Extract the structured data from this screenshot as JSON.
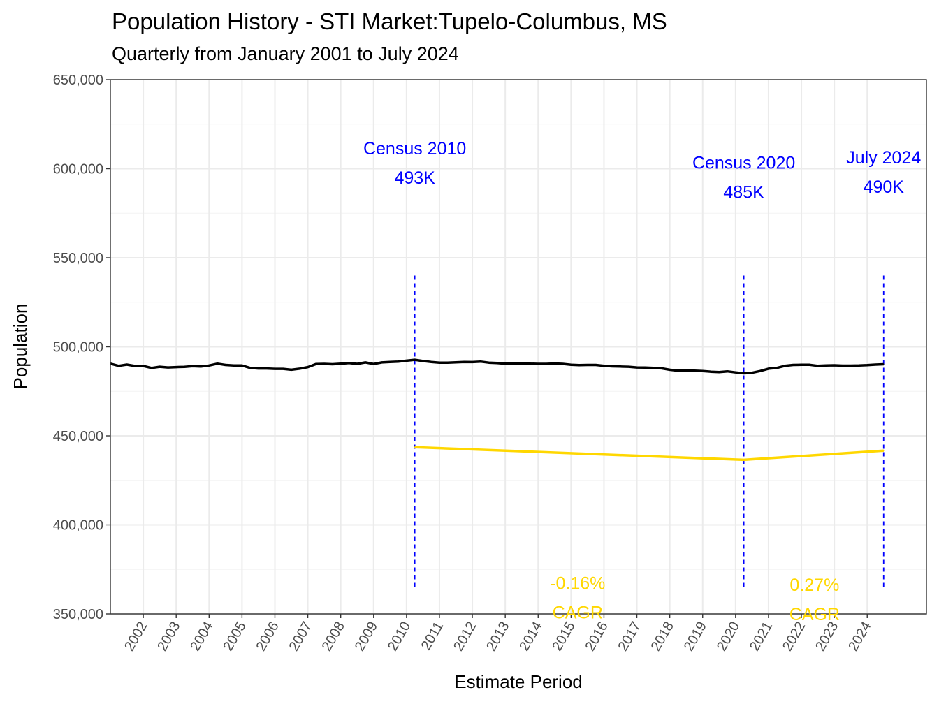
{
  "chart_data": {
    "type": "line",
    "title": "Population History - STI Market:Tupelo-Columbus, MS",
    "subtitle": "Quarterly from January 2001 to July 2024",
    "xlabel": "Estimate Period",
    "ylabel": "Population",
    "ylim": [
      350000,
      650000
    ],
    "xlim": [
      2001.0,
      2025.8
    ],
    "y_ticks": [
      350000,
      400000,
      450000,
      500000,
      550000,
      600000,
      650000
    ],
    "y_tick_labels": [
      "350,000",
      "400,000",
      "450,000",
      "500,000",
      "550,000",
      "600,000",
      "650,000"
    ],
    "x_tick_labels": [
      "2002",
      "2003",
      "2004",
      "2005",
      "2006",
      "2007",
      "2008",
      "2009",
      "2010",
      "2011",
      "2012",
      "2013",
      "2014",
      "2015",
      "2016",
      "2017",
      "2018",
      "2019",
      "2020",
      "2021",
      "2022",
      "2023",
      "2024"
    ],
    "x_tick_label_rotation": -60,
    "grid": true,
    "series": [
      {
        "color": "#000000",
        "x": [
          2001.0,
          2001.25,
          2001.5,
          2001.75,
          2002.0,
          2002.25,
          2002.5,
          2002.75,
          2003.0,
          2003.25,
          2003.5,
          2003.75,
          2004.0,
          2004.25,
          2004.5,
          2004.75,
          2005.0,
          2005.25,
          2005.5,
          2005.75,
          2006.0,
          2006.25,
          2006.5,
          2006.75,
          2007.0,
          2007.25,
          2007.5,
          2007.75,
          2008.0,
          2008.25,
          2008.5,
          2008.75,
          2009.0,
          2009.25,
          2009.5,
          2009.75,
          2010.0,
          2010.25,
          2010.5,
          2010.75,
          2011.0,
          2011.25,
          2011.5,
          2011.75,
          2012.0,
          2012.25,
          2012.5,
          2012.75,
          2013.0,
          2013.25,
          2013.5,
          2013.75,
          2014.0,
          2014.25,
          2014.5,
          2014.75,
          2015.0,
          2015.25,
          2015.5,
          2015.75,
          2016.0,
          2016.25,
          2016.5,
          2016.75,
          2017.0,
          2017.25,
          2017.5,
          2017.75,
          2018.0,
          2018.25,
          2018.5,
          2018.75,
          2019.0,
          2019.25,
          2019.5,
          2019.75,
          2020.0,
          2020.25,
          2020.5,
          2020.75,
          2021.0,
          2021.25,
          2021.5,
          2021.75,
          2022.0,
          2022.25,
          2022.5,
          2022.75,
          2023.0,
          2023.25,
          2023.5,
          2023.75,
          2024.0,
          2024.25,
          2024.5
        ],
        "values": [
          490500,
          489300,
          490000,
          489200,
          489200,
          488100,
          488800,
          488400,
          488600,
          488700,
          489100,
          488900,
          489500,
          490500,
          489800,
          489500,
          489500,
          488100,
          487800,
          487800,
          487600,
          487600,
          487100,
          487700,
          488600,
          490300,
          490400,
          490200,
          490500,
          490900,
          490400,
          491200,
          490300,
          491200,
          491500,
          491700,
          492200,
          492700,
          492000,
          491500,
          491100,
          491100,
          491300,
          491500,
          491400,
          491700,
          491100,
          490900,
          490500,
          490500,
          490500,
          490500,
          490400,
          490400,
          490600,
          490400,
          489900,
          489700,
          489800,
          489800,
          489300,
          489000,
          488900,
          488800,
          488400,
          488300,
          488100,
          487900,
          487100,
          486600,
          486700,
          486600,
          486400,
          486000,
          485800,
          486200,
          485600,
          485100,
          485400,
          486400,
          487700,
          488100,
          489300,
          489800,
          489900,
          489900,
          489300,
          489500,
          489600,
          489400,
          489400,
          489500,
          489700,
          490000,
          490200
        ]
      },
      {
        "color": "#ffd700",
        "x": [
          2010.25,
          2020.25,
          2024.5
        ],
        "values": [
          443600,
          436500,
          441700
        ]
      }
    ],
    "vlines": [
      2010.25,
      2020.25,
      2024.5
    ],
    "annotations": [
      {
        "lines": [
          "Census 2010",
          "493K"
        ],
        "x": 2010.25,
        "y": 608000,
        "color": "#0000ff"
      },
      {
        "lines": [
          "Census 2020",
          "485K"
        ],
        "x": 2020.25,
        "y": 600000,
        "color": "#0000ff"
      },
      {
        "lines": [
          "July 2024",
          "490K"
        ],
        "x": 2024.5,
        "y": 603000,
        "color": "#0000ff"
      },
      {
        "lines": [
          "-0.16%",
          " CAGR"
        ],
        "x": 2015.2,
        "y": 364000,
        "color": "#ffd700"
      },
      {
        "lines": [
          "0.27%",
          " CAGR"
        ],
        "x": 2022.4,
        "y": 363000,
        "color": "#ffd700"
      }
    ]
  }
}
